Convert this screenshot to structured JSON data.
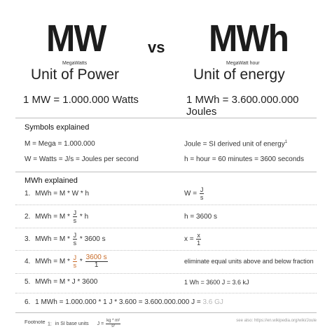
{
  "header": {
    "left": {
      "title": "MW",
      "subtitle": "MegaWatts",
      "label": "Unit of Power"
    },
    "vs": "vs",
    "right": {
      "title": "MWh",
      "subtitle": "MegaWatt hour",
      "label": "Unit of energy"
    }
  },
  "equations": {
    "left": "1 MW = 1.000.000 Watts",
    "right": "1 MWh = 3.600.000.000 Joules"
  },
  "symbols": {
    "heading": "Symbols explained",
    "left": [
      "M = Mega = 1.000.000",
      "W = Watts = J/s = Joules per second"
    ],
    "right_joule": "Joule = SI derived unit of energy",
    "right_joule_sup": "1",
    "right_hour": "h = hour = 60 minutes = 3600 seconds"
  },
  "mwh": {
    "heading": "MWh explained",
    "step1": {
      "n": "1.",
      "left": "MWh = M * W * h",
      "r_pre": "W =",
      "r_num": "J",
      "r_den": "s"
    },
    "step2": {
      "n": "2.",
      "pre": "MWh = M *",
      "num": "J",
      "den": "s",
      "post": "* h",
      "right": "h = 3600 s"
    },
    "step3": {
      "n": "3.",
      "pre": "MWh = M *",
      "num": "J",
      "den": "s",
      "post": "* 3600 s",
      "r_pre": "x =",
      "r_num": "x",
      "r_den": "1"
    },
    "step4": {
      "n": "4.",
      "pre": "MWh = M *",
      "num": "J",
      "den": "s",
      "star": "*",
      "num2": "3600 s",
      "den2": "1",
      "right": "eliminate equal units above and below fraction"
    },
    "step5": {
      "n": "5.",
      "left": "MWh = M * J * 3600",
      "right": "1 Wh = 3600 J = 3.6 kJ"
    },
    "step6": {
      "n": "6.",
      "main": "1 MWh = 1.000.000 * 1 J * 3.600 = 3.600.000.000 J =",
      "grey": "3.6 GJ"
    }
  },
  "footnote": {
    "label": "Footnote",
    "n": "1:",
    "text": "in SI base units",
    "j": "J =",
    "j_num": "kg * m²",
    "j_den": "s²",
    "source": "see also: https://en.wikipedia.org/wiki/Joule"
  }
}
